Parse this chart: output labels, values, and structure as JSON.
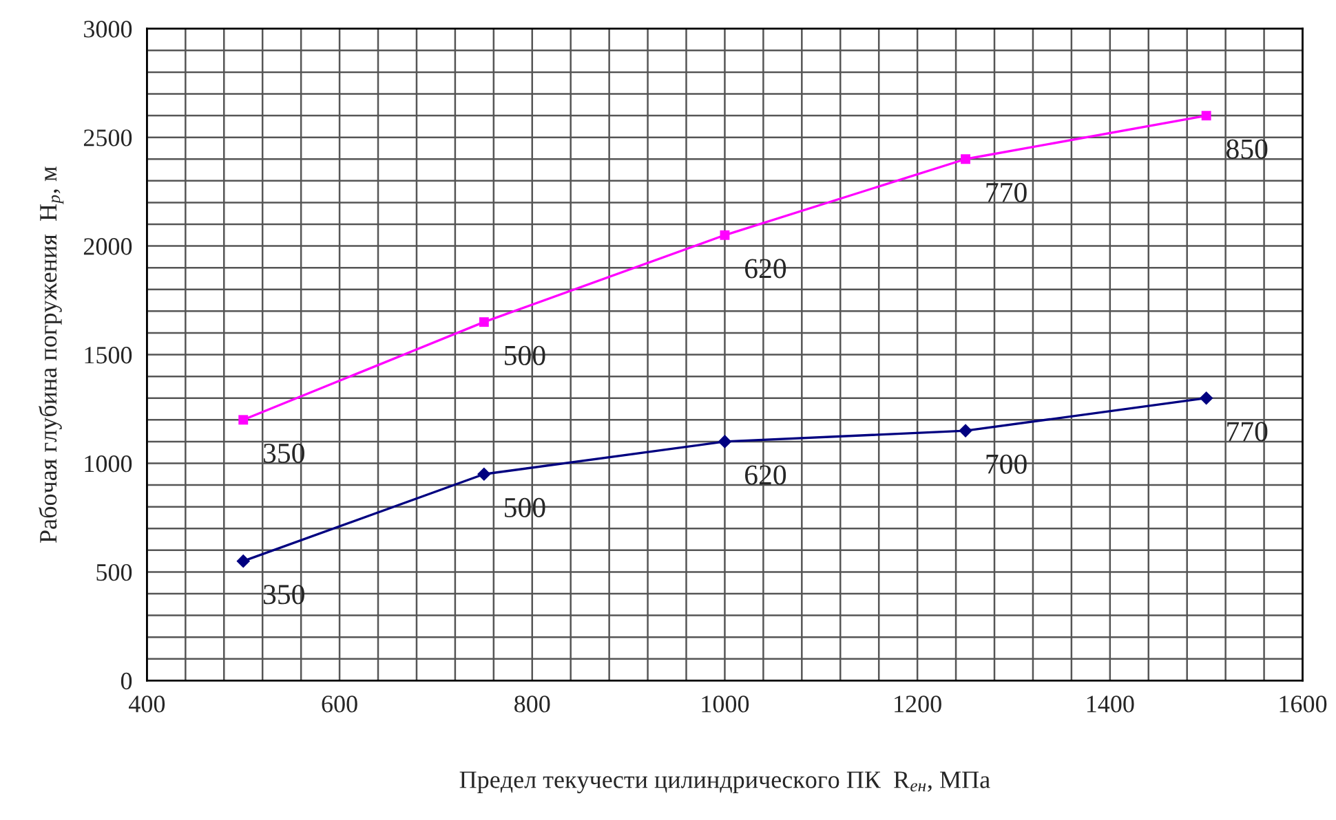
{
  "chart_data": {
    "type": "line",
    "xlabel": "Предел текучести цилиндрического ПК  R$_{ен}$, МПа",
    "ylabel": "Рабочая глубина погружения  H$_{р}$, м",
    "x": [
      500,
      750,
      1000,
      1250,
      1500
    ],
    "series": [
      {
        "color": "#ff00ff",
        "marker": "square",
        "values": [
          1200,
          1650,
          2050,
          2400,
          2600
        ]
      },
      {
        "color": "#000080",
        "marker": "diamond",
        "values": [
          550,
          950,
          1100,
          1150,
          1300
        ]
      }
    ],
    "xlim": [
      400,
      1600
    ],
    "xticks": [
      400,
      {
        "value": 440,
        "label": null
      },
      {
        "value": 480,
        "label": null
      },
      {
        "value": 520,
        "label": null
      },
      {
        "value": 560,
        "label": null
      },
      600,
      {
        "value": 640,
        "label": null
      },
      {
        "value": 680,
        "label": null
      },
      {
        "value": 720,
        "label": null
      },
      {
        "value": 760,
        "label": null
      },
      800,
      {
        "value": 840,
        "label": null
      },
      {
        "value": 880,
        "label": null
      },
      {
        "value": 920,
        "label": null
      },
      {
        "value": 960,
        "label": null
      },
      1000,
      {
        "value": 1040,
        "label": null
      },
      {
        "value": 1080,
        "label": null
      },
      {
        "value": 1120,
        "label": null
      },
      {
        "value": 1160,
        "label": null
      },
      1200,
      {
        "value": 1240,
        "label": null
      },
      {
        "value": 1280,
        "label": null
      },
      {
        "value": 1320,
        "label": null
      },
      {
        "value": 1360,
        "label": null
      },
      1400,
      {
        "value": 1440,
        "label": null
      },
      {
        "value": 1480,
        "label": null
      },
      {
        "value": 1520,
        "label": null
      },
      {
        "value": 1560,
        "label": null
      },
      1600
    ],
    "ylim": [
      0,
      3000
    ],
    "yticks": [
      0,
      {
        "value": 100,
        "label": null
      },
      {
        "value": 200,
        "label": null
      },
      {
        "value": 300,
        "label": null
      },
      {
        "value": 400,
        "label": null
      },
      500,
      {
        "value": 600,
        "label": null
      },
      {
        "value": 700,
        "label": null
      },
      {
        "value": 800,
        "label": null
      },
      {
        "value": 900,
        "label": null
      },
      1000,
      {
        "value": 1100,
        "label": null
      },
      {
        "value": 1200,
        "label": null
      },
      {
        "value": 1300,
        "label": null
      },
      {
        "value": 1400,
        "label": null
      },
      1500,
      {
        "value": 1600,
        "label": null
      },
      {
        "value": 1700,
        "label": null
      },
      {
        "value": 1800,
        "label": null
      },
      {
        "value": 1900,
        "label": null
      },
      2000,
      {
        "value": 2100,
        "label": null
      },
      {
        "value": 2200,
        "label": null
      },
      {
        "value": 2300,
        "label": null
      },
      {
        "value": 2400,
        "label": null
      },
      2500,
      {
        "value": 2600,
        "label": null
      },
      {
        "value": 2700,
        "label": null
      },
      {
        "value": 2800,
        "label": null
      },
      {
        "value": 2900,
        "label": null
      },
      3000
    ],
    "grid": true,
    "legend": false,
    "annotations": [
      {
        "text": "350",
        "x": 500,
        "y": 1200
      },
      {
        "text": "500",
        "x": 750,
        "y": 1650
      },
      {
        "text": "620",
        "x": 1000,
        "y": 2050
      },
      {
        "text": "770",
        "x": 1250,
        "y": 2400
      },
      {
        "text": "850",
        "x": 1500,
        "y": 2600
      },
      {
        "text": "350",
        "x": 500,
        "y": 550
      },
      {
        "text": "500",
        "x": 750,
        "y": 950
      },
      {
        "text": "620",
        "x": 1000,
        "y": 1100
      },
      {
        "text": "700",
        "x": 1250,
        "y": 1150
      },
      {
        "text": "770",
        "x": 1500,
        "y": 1300
      }
    ]
  }
}
